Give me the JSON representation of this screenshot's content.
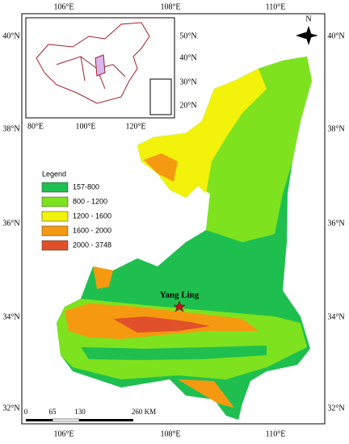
{
  "top_labels": [
    "106°E",
    "108°E",
    "110°E"
  ],
  "bottom_labels": [
    "106°E",
    "108°E",
    "110°E"
  ],
  "left_labels": [
    "40°N",
    "38°N",
    "36°N",
    "34°N",
    "32°N"
  ],
  "right_labels": [
    "40°N",
    "38°N",
    "36°N",
    "34°N",
    "32°N"
  ],
  "inset": {
    "lat_labels": [
      "50°N",
      "40°N",
      "30°N",
      "20°N"
    ],
    "lon_labels": [
      "80°E",
      "100°E",
      "120°E"
    ]
  },
  "compass": "N",
  "legend": {
    "title": "Legend",
    "items": [
      {
        "label": "157-800",
        "color": "#1fbf4f"
      },
      {
        "label": "800 - 1200",
        "color": "#7ee21e"
      },
      {
        "label": "1200 - 1600",
        "color": "#f2f20a"
      },
      {
        "label": "1600 - 2000",
        "color": "#f59a10"
      },
      {
        "label": "2000 - 3748",
        "color": "#e0502a"
      }
    ]
  },
  "site": "Yang Ling",
  "scale_bar": [
    "0",
    "65",
    "130",
    "260 KM"
  ]
}
